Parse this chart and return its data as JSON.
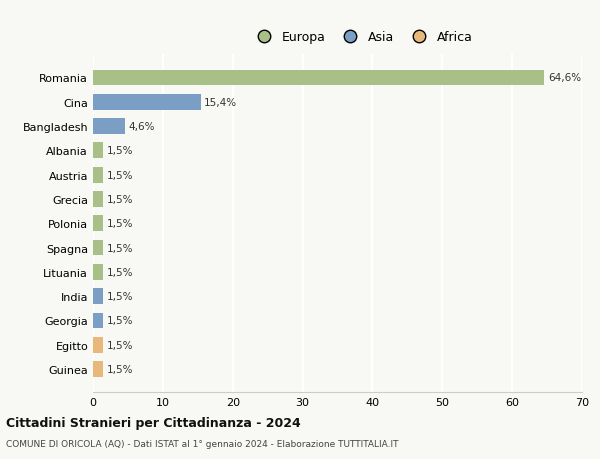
{
  "categories": [
    "Guinea",
    "Egitto",
    "Georgia",
    "India",
    "Lituania",
    "Spagna",
    "Polonia",
    "Grecia",
    "Austria",
    "Albania",
    "Bangladesh",
    "Cina",
    "Romania"
  ],
  "values": [
    1.5,
    1.5,
    1.5,
    1.5,
    1.5,
    1.5,
    1.5,
    1.5,
    1.5,
    1.5,
    4.6,
    15.4,
    64.6
  ],
  "labels": [
    "1,5%",
    "1,5%",
    "1,5%",
    "1,5%",
    "1,5%",
    "1,5%",
    "1,5%",
    "1,5%",
    "1,5%",
    "1,5%",
    "4,6%",
    "15,4%",
    "64,6%"
  ],
  "colors": [
    "#e8b87a",
    "#e8b87a",
    "#7b9ec4",
    "#7b9ec4",
    "#a8bf87",
    "#a8bf87",
    "#a8bf87",
    "#a8bf87",
    "#a8bf87",
    "#a8bf87",
    "#7b9ec4",
    "#7b9ec4",
    "#a8bf87"
  ],
  "legend": [
    {
      "label": "Europa",
      "color": "#a8bf87"
    },
    {
      "label": "Asia",
      "color": "#7b9ec4"
    },
    {
      "label": "Africa",
      "color": "#e8b87a"
    }
  ],
  "xlim": [
    0,
    70
  ],
  "xticks": [
    0,
    10,
    20,
    30,
    40,
    50,
    60,
    70
  ],
  "title": "Cittadini Stranieri per Cittadinanza - 2024",
  "subtitle": "COMUNE DI ORICOLA (AQ) - Dati ISTAT al 1° gennaio 2024 - Elaborazione TUTTITALIA.IT",
  "background_color": "#f8f8f5",
  "grid_color": "#ffffff",
  "bar_height": 0.65
}
